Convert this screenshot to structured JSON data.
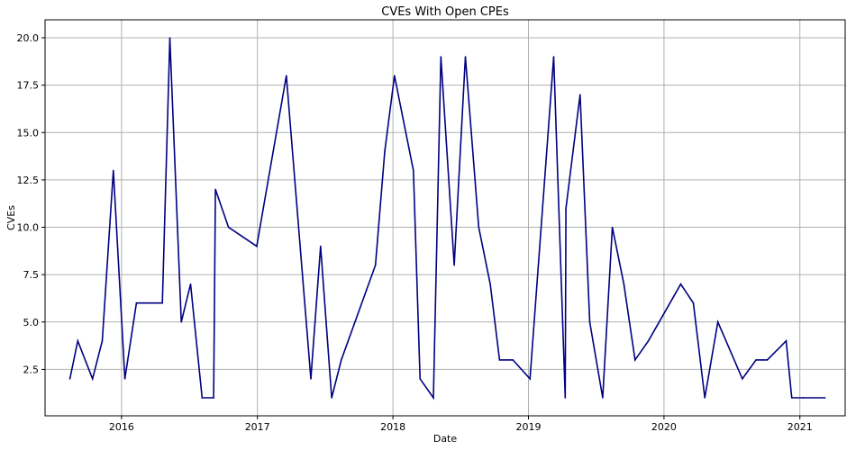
{
  "chart_data": {
    "type": "line",
    "title": "CVEs With Open CPEs",
    "xlabel": "Date",
    "ylabel": "CVEs",
    "x_ticks": [
      "2016",
      "2017",
      "2018",
      "2019",
      "2020",
      "2021"
    ],
    "y_ticks": [
      "2.5",
      "5.0",
      "7.5",
      "10.0",
      "12.5",
      "15.0",
      "17.5",
      "20.0"
    ],
    "xlim": [
      "2015-06-09",
      "2021-05-03"
    ],
    "ylim": [
      0.05,
      20.95
    ],
    "grid": true,
    "series": [
      {
        "color": "#000080",
        "points": [
          [
            "2015-08-15",
            2
          ],
          [
            "2015-09-05",
            4
          ],
          [
            "2015-10-15",
            2
          ],
          [
            "2015-11-10",
            4
          ],
          [
            "2015-12-10",
            13
          ],
          [
            "2016-01-10",
            2
          ],
          [
            "2016-02-10",
            6
          ],
          [
            "2016-04-20",
            6
          ],
          [
            "2016-05-10",
            20
          ],
          [
            "2016-06-10",
            5
          ],
          [
            "2016-07-05",
            7
          ],
          [
            "2016-08-05",
            1
          ],
          [
            "2016-09-05",
            1
          ],
          [
            "2016-09-10",
            12
          ],
          [
            "2016-10-15",
            10
          ],
          [
            "2016-12-30",
            9
          ],
          [
            "2017-03-20",
            18
          ],
          [
            "2017-05-25",
            2
          ],
          [
            "2017-06-20",
            9
          ],
          [
            "2017-07-20",
            1
          ],
          [
            "2017-08-15",
            3
          ],
          [
            "2017-11-15",
            8
          ],
          [
            "2017-12-10",
            14
          ],
          [
            "2018-01-05",
            18
          ],
          [
            "2018-02-25",
            13
          ],
          [
            "2018-03-15",
            2
          ],
          [
            "2018-04-20",
            1
          ],
          [
            "2018-05-10",
            19
          ],
          [
            "2018-06-15",
            8
          ],
          [
            "2018-07-15",
            19
          ],
          [
            "2018-08-20",
            10
          ],
          [
            "2018-09-20",
            7
          ],
          [
            "2018-10-15",
            3
          ],
          [
            "2018-11-20",
            3
          ],
          [
            "2019-01-05",
            2
          ],
          [
            "2019-03-10",
            19
          ],
          [
            "2019-04-10",
            1
          ],
          [
            "2019-04-12",
            11
          ],
          [
            "2019-05-20",
            17
          ],
          [
            "2019-06-15",
            5
          ],
          [
            "2019-07-20",
            1
          ],
          [
            "2019-08-15",
            10
          ],
          [
            "2019-09-15",
            7
          ],
          [
            "2019-10-15",
            3
          ],
          [
            "2019-11-20",
            4
          ],
          [
            "2020-02-15",
            7
          ],
          [
            "2020-03-20",
            6
          ],
          [
            "2020-04-20",
            1
          ],
          [
            "2020-05-25",
            5
          ],
          [
            "2020-07-30",
            2
          ],
          [
            "2020-09-05",
            3
          ],
          [
            "2020-10-05",
            3
          ],
          [
            "2020-11-25",
            4
          ],
          [
            "2020-12-10",
            1
          ],
          [
            "2021-01-10",
            1
          ],
          [
            "2021-03-10",
            1
          ]
        ]
      }
    ]
  }
}
